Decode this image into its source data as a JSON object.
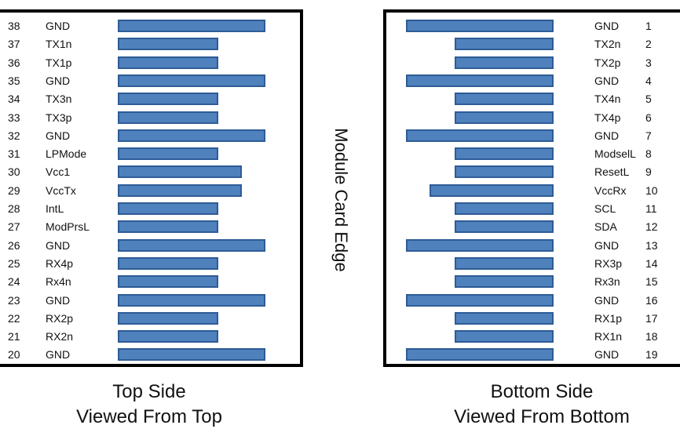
{
  "edge_label": "Module Card Edge",
  "captions": {
    "top_line1": "Top Side",
    "top_line2": "Viewed From Top",
    "bottom_line1": "Bottom Side",
    "bottom_line2": "Viewed From Bottom"
  },
  "top_side": [
    {
      "pin": "38",
      "name": "GND",
      "contact": "long"
    },
    {
      "pin": "37",
      "name": "TX1n",
      "contact": "short"
    },
    {
      "pin": "36",
      "name": "TX1p",
      "contact": "short"
    },
    {
      "pin": "35",
      "name": "GND",
      "contact": "long"
    },
    {
      "pin": "34",
      "name": "TX3n",
      "contact": "short"
    },
    {
      "pin": "33",
      "name": "TX3p",
      "contact": "short"
    },
    {
      "pin": "32",
      "name": "GND",
      "contact": "long"
    },
    {
      "pin": "31",
      "name": "LPMode",
      "contact": "short"
    },
    {
      "pin": "30",
      "name": "Vcc1",
      "contact": "medium"
    },
    {
      "pin": "29",
      "name": "VccTx",
      "contact": "medium"
    },
    {
      "pin": "28",
      "name": "IntL",
      "contact": "short"
    },
    {
      "pin": "27",
      "name": "ModPrsL",
      "contact": "short"
    },
    {
      "pin": "26",
      "name": "GND",
      "contact": "long"
    },
    {
      "pin": "25",
      "name": "RX4p",
      "contact": "short"
    },
    {
      "pin": "24",
      "name": "Rx4n",
      "contact": "short"
    },
    {
      "pin": "23",
      "name": "GND",
      "contact": "long"
    },
    {
      "pin": "22",
      "name": "RX2p",
      "contact": "short"
    },
    {
      "pin": "21",
      "name": "RX2n",
      "contact": "short"
    },
    {
      "pin": "20",
      "name": "GND",
      "contact": "long"
    }
  ],
  "bottom_side": [
    {
      "pin": "1",
      "name": "GND",
      "contact": "long"
    },
    {
      "pin": "2",
      "name": "TX2n",
      "contact": "short"
    },
    {
      "pin": "3",
      "name": "TX2p",
      "contact": "short"
    },
    {
      "pin": "4",
      "name": "GND",
      "contact": "long"
    },
    {
      "pin": "5",
      "name": "TX4n",
      "contact": "short"
    },
    {
      "pin": "6",
      "name": "TX4p",
      "contact": "short"
    },
    {
      "pin": "7",
      "name": "GND",
      "contact": "long"
    },
    {
      "pin": "8",
      "name": "ModselL",
      "contact": "short"
    },
    {
      "pin": "9",
      "name": "ResetL",
      "contact": "short"
    },
    {
      "pin": "10",
      "name": "VccRx",
      "contact": "medium"
    },
    {
      "pin": "11",
      "name": "SCL",
      "contact": "short"
    },
    {
      "pin": "12",
      "name": "SDA",
      "contact": "short"
    },
    {
      "pin": "13",
      "name": "GND",
      "contact": "long"
    },
    {
      "pin": "14",
      "name": "RX3p",
      "contact": "short"
    },
    {
      "pin": "15",
      "name": "Rx3n",
      "contact": "short"
    },
    {
      "pin": "16",
      "name": "GND",
      "contact": "long"
    },
    {
      "pin": "17",
      "name": "RX1p",
      "contact": "short"
    },
    {
      "pin": "18",
      "name": "RX1n",
      "contact": "short"
    },
    {
      "pin": "19",
      "name": "GND",
      "contact": "long"
    }
  ]
}
